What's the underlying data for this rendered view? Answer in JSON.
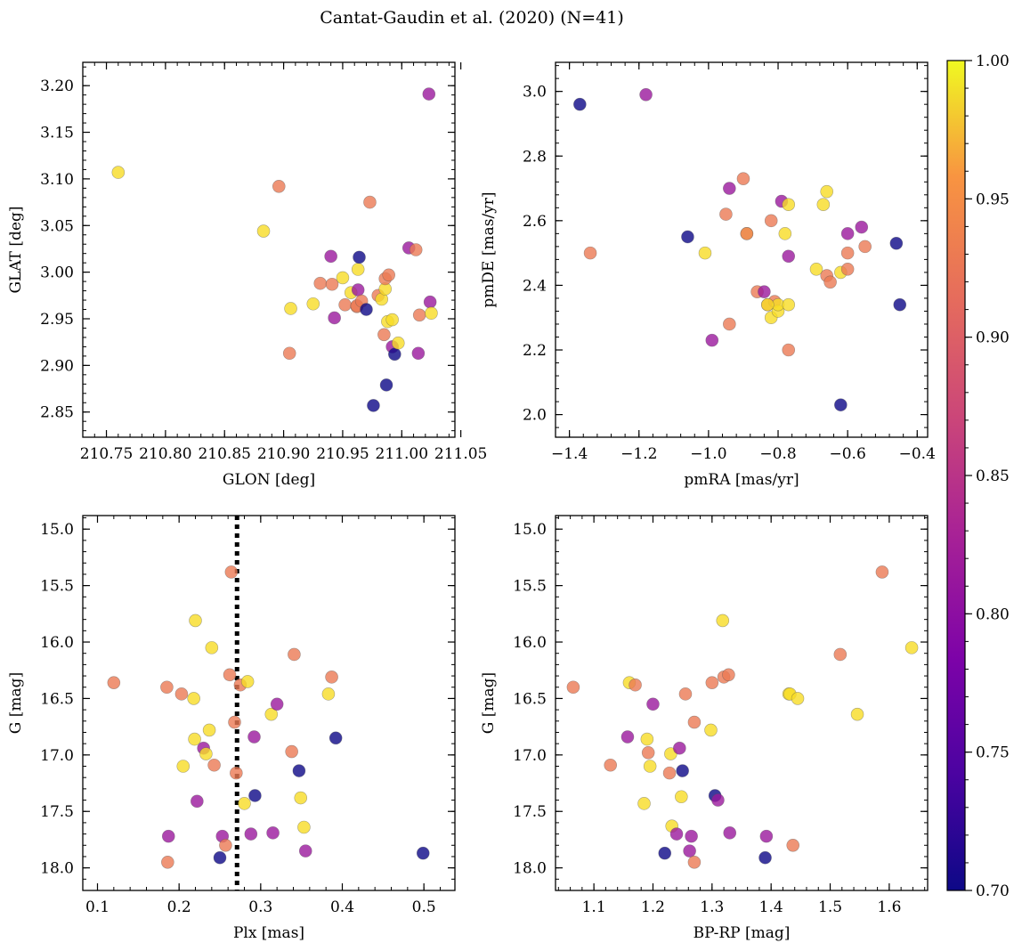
{
  "figure": {
    "title": "Cantat-Gaudin et al. (2020) (N=41)"
  },
  "chart_data": [
    {
      "type": "scatter",
      "panel": "top-left",
      "xlabel": "GLON [deg]",
      "ylabel": "GLAT [deg]",
      "xlim": [
        210.73,
        211.045
      ],
      "ylim": [
        2.823,
        3.225
      ],
      "y_inverted": false,
      "xticks": [
        210.75,
        210.8,
        210.85,
        210.9,
        210.95,
        211.0,
        211.05
      ],
      "xtick_labels": [
        "210.75",
        "210.80",
        "210.85",
        "210.90",
        "210.95",
        "211.00",
        "211.05"
      ],
      "yticks": [
        2.85,
        2.9,
        2.95,
        3.0,
        3.05,
        3.1,
        3.15,
        3.2
      ],
      "ytick_labels": [
        "2.85",
        "2.90",
        "2.95",
        "3.00",
        "3.05",
        "3.10",
        "3.15",
        "3.20"
      ],
      "x": [
        210.76,
        210.883,
        210.896,
        210.906,
        210.905,
        210.925,
        210.931,
        210.94,
        210.941,
        210.943,
        210.95,
        210.952,
        210.957,
        210.962,
        210.962,
        210.963,
        210.963,
        210.964,
        210.966,
        210.973,
        210.976,
        210.98,
        210.983,
        210.986,
        210.986,
        210.987,
        210.988,
        210.989,
        210.992,
        210.992,
        210.994,
        210.997,
        211.006,
        211.012,
        211.014,
        211.015,
        211.023,
        211.024,
        211.025,
        210.985,
        210.97
      ],
      "y": [
        3.107,
        3.044,
        3.092,
        2.961,
        2.913,
        2.966,
        2.988,
        3.017,
        2.987,
        2.951,
        2.994,
        2.965,
        2.978,
        2.963,
        2.964,
        3.003,
        2.981,
        3.016,
        2.969,
        3.075,
        2.857,
        2.975,
        2.971,
        2.982,
        2.993,
        2.879,
        2.947,
        2.997,
        2.92,
        2.949,
        2.912,
        2.924,
        3.026,
        3.024,
        2.913,
        2.954,
        3.191,
        2.968,
        2.956,
        2.933,
        2.96
      ],
      "colors": [
        0.98,
        0.98,
        0.9,
        0.98,
        0.9,
        0.98,
        0.9,
        0.8,
        0.9,
        0.8,
        0.98,
        0.9,
        0.98,
        0.9,
        0.9,
        0.98,
        0.8,
        0.7,
        0.9,
        0.9,
        0.7,
        0.9,
        0.98,
        0.98,
        0.9,
        0.7,
        0.98,
        0.9,
        0.8,
        0.98,
        0.7,
        0.98,
        0.8,
        0.9,
        0.8,
        0.9,
        0.8,
        0.8,
        0.98,
        0.9,
        0.7
      ]
    },
    {
      "type": "scatter",
      "panel": "top-right",
      "xlabel": "pmRA [mas/yr]",
      "ylabel": "pmDE [mas/yr]",
      "xlim": [
        -1.44,
        -0.37
      ],
      "ylim": [
        1.93,
        3.09
      ],
      "y_inverted": false,
      "xticks": [
        -1.4,
        -1.2,
        -1.0,
        -0.8,
        -0.6,
        -0.4
      ],
      "xtick_labels": [
        "−1.4",
        "−1.2",
        "−1.0",
        "−0.8",
        "−0.6",
        "−0.4"
      ],
      "yticks": [
        2.0,
        2.2,
        2.4,
        2.6,
        2.8,
        3.0
      ],
      "ytick_labels": [
        "2.0",
        "2.2",
        "2.4",
        "2.6",
        "2.8",
        "3.0"
      ],
      "x": [
        -1.37,
        -1.18,
        -1.34,
        -1.06,
        -1.01,
        -0.99,
        -0.95,
        -0.94,
        -0.94,
        -0.9,
        -0.89,
        -0.89,
        -0.86,
        -0.84,
        -0.83,
        -0.82,
        -0.82,
        -0.81,
        -0.8,
        -0.8,
        -0.79,
        -0.78,
        -0.77,
        -0.77,
        -0.77,
        -0.77,
        -0.69,
        -0.67,
        -0.66,
        -0.66,
        -0.65,
        -0.62,
        -0.62,
        -0.6,
        -0.6,
        -0.6,
        -0.56,
        -0.55,
        -0.46,
        -0.45,
        -0.83
      ],
      "y": [
        2.96,
        2.99,
        2.5,
        2.55,
        2.5,
        2.23,
        2.62,
        2.7,
        2.28,
        2.73,
        2.56,
        2.56,
        2.38,
        2.38,
        2.34,
        2.6,
        2.3,
        2.35,
        2.32,
        2.34,
        2.66,
        2.56,
        2.49,
        2.65,
        2.34,
        2.2,
        2.45,
        2.65,
        2.69,
        2.43,
        2.41,
        2.03,
        2.44,
        2.45,
        2.56,
        2.5,
        2.58,
        2.52,
        2.53,
        2.34,
        2.34
      ],
      "colors": [
        0.7,
        0.8,
        0.9,
        0.7,
        0.98,
        0.8,
        0.9,
        0.8,
        0.9,
        0.9,
        0.98,
        0.9,
        0.9,
        0.8,
        0.9,
        0.9,
        0.98,
        0.9,
        0.98,
        0.98,
        0.8,
        0.98,
        0.8,
        0.98,
        0.98,
        0.9,
        0.98,
        0.98,
        0.98,
        0.9,
        0.9,
        0.7,
        0.98,
        0.9,
        0.8,
        0.9,
        0.8,
        0.9,
        0.7,
        0.7,
        0.98
      ]
    },
    {
      "type": "scatter",
      "panel": "bottom-left",
      "xlabel": "Plx [mas]",
      "ylabel": "G [mag]",
      "xlim": [
        0.082,
        0.538
      ],
      "ylim": [
        18.2,
        14.88
      ],
      "y_inverted": true,
      "xticks": [
        0.1,
        0.2,
        0.3,
        0.4,
        0.5
      ],
      "xtick_labels": [
        "0.1",
        "0.2",
        "0.3",
        "0.4",
        "0.5"
      ],
      "yticks": [
        15.0,
        15.5,
        16.0,
        16.5,
        17.0,
        17.5,
        18.0
      ],
      "ytick_labels": [
        "15.0",
        "15.5",
        "16.0",
        "16.5",
        "17.0",
        "17.5",
        "18.0"
      ],
      "vline": {
        "x": 0.271,
        "style": "dotted"
      },
      "x": [
        0.12,
        0.185,
        0.186,
        0.187,
        0.203,
        0.205,
        0.218,
        0.22,
        0.219,
        0.222,
        0.23,
        0.233,
        0.237,
        0.24,
        0.243,
        0.25,
        0.253,
        0.257,
        0.262,
        0.264,
        0.268,
        0.27,
        0.275,
        0.28,
        0.284,
        0.288,
        0.292,
        0.293,
        0.313,
        0.315,
        0.32,
        0.338,
        0.341,
        0.347,
        0.349,
        0.353,
        0.355,
        0.383,
        0.387,
        0.392,
        0.499
      ],
      "y": [
        16.36,
        16.4,
        17.95,
        17.72,
        16.46,
        17.1,
        16.5,
        15.81,
        16.86,
        17.41,
        16.94,
        16.99,
        16.78,
        16.05,
        17.09,
        17.91,
        17.72,
        17.8,
        16.29,
        15.38,
        16.71,
        17.16,
        16.38,
        17.43,
        16.35,
        17.7,
        16.84,
        17.36,
        16.64,
        17.69,
        16.55,
        16.97,
        16.11,
        17.14,
        17.38,
        17.64,
        17.85,
        16.46,
        16.31,
        16.85,
        17.87
      ],
      "colors": [
        0.9,
        0.9,
        0.9,
        0.8,
        0.9,
        0.98,
        0.98,
        0.98,
        0.98,
        0.8,
        0.8,
        0.98,
        0.98,
        0.98,
        0.9,
        0.7,
        0.8,
        0.9,
        0.9,
        0.9,
        0.9,
        0.9,
        0.9,
        0.98,
        0.98,
        0.8,
        0.8,
        0.7,
        0.98,
        0.8,
        0.8,
        0.9,
        0.9,
        0.7,
        0.98,
        0.98,
        0.8,
        0.98,
        0.9,
        0.7,
        0.7
      ]
    },
    {
      "type": "scatter",
      "panel": "bottom-right",
      "xlabel": "BP-RP [mag]",
      "ylabel": "G [mag]",
      "xlim": [
        1.035,
        1.665
      ],
      "ylim": [
        18.2,
        14.88
      ],
      "y_inverted": true,
      "xticks": [
        1.1,
        1.2,
        1.3,
        1.4,
        1.5,
        1.6
      ],
      "xtick_labels": [
        "1.1",
        "1.2",
        "1.3",
        "1.4",
        "1.5",
        "1.6"
      ],
      "yticks": [
        15.0,
        15.5,
        16.0,
        16.5,
        17.0,
        17.5,
        18.0
      ],
      "ytick_labels": [
        "15.0",
        "15.5",
        "16.0",
        "16.5",
        "17.0",
        "17.5",
        "18.0"
      ],
      "x": [
        1.065,
        1.128,
        1.157,
        1.16,
        1.17,
        1.185,
        1.19,
        1.192,
        1.195,
        1.2,
        1.22,
        1.228,
        1.23,
        1.232,
        1.24,
        1.245,
        1.248,
        1.25,
        1.255,
        1.262,
        1.265,
        1.27,
        1.27,
        1.298,
        1.3,
        1.305,
        1.31,
        1.318,
        1.32,
        1.328,
        1.33,
        1.39,
        1.392,
        1.43,
        1.432,
        1.437,
        1.445,
        1.517,
        1.546,
        1.588,
        1.638
      ],
      "y": [
        16.4,
        17.09,
        16.84,
        16.36,
        16.38,
        17.43,
        16.86,
        16.98,
        17.1,
        16.55,
        17.87,
        17.16,
        16.99,
        17.63,
        17.7,
        16.94,
        17.37,
        17.14,
        16.46,
        17.85,
        17.72,
        16.71,
        17.95,
        16.78,
        16.36,
        17.36,
        17.4,
        15.81,
        16.31,
        16.29,
        17.69,
        17.91,
        17.72,
        16.46,
        16.46,
        17.8,
        16.5,
        16.11,
        16.64,
        15.38,
        16.05
      ],
      "colors": [
        0.9,
        0.9,
        0.8,
        0.98,
        0.9,
        0.98,
        0.98,
        0.9,
        0.98,
        0.8,
        0.7,
        0.9,
        0.98,
        0.98,
        0.8,
        0.8,
        0.98,
        0.7,
        0.9,
        0.8,
        0.8,
        0.9,
        0.9,
        0.98,
        0.9,
        0.7,
        0.8,
        0.98,
        0.9,
        0.9,
        0.8,
        0.7,
        0.8,
        0.98,
        0.98,
        0.9,
        0.98,
        0.9,
        0.98,
        0.9,
        0.98
      ]
    }
  ],
  "colorbar": {
    "min": 0.7,
    "max": 1.0,
    "ticks": [
      0.7,
      0.75,
      0.8,
      0.85,
      0.9,
      0.95,
      1.0
    ],
    "tick_labels": [
      "0.70",
      "0.75",
      "0.80",
      "0.85",
      "0.90",
      "0.95",
      "1.00"
    ],
    "colormap": "plasma"
  }
}
